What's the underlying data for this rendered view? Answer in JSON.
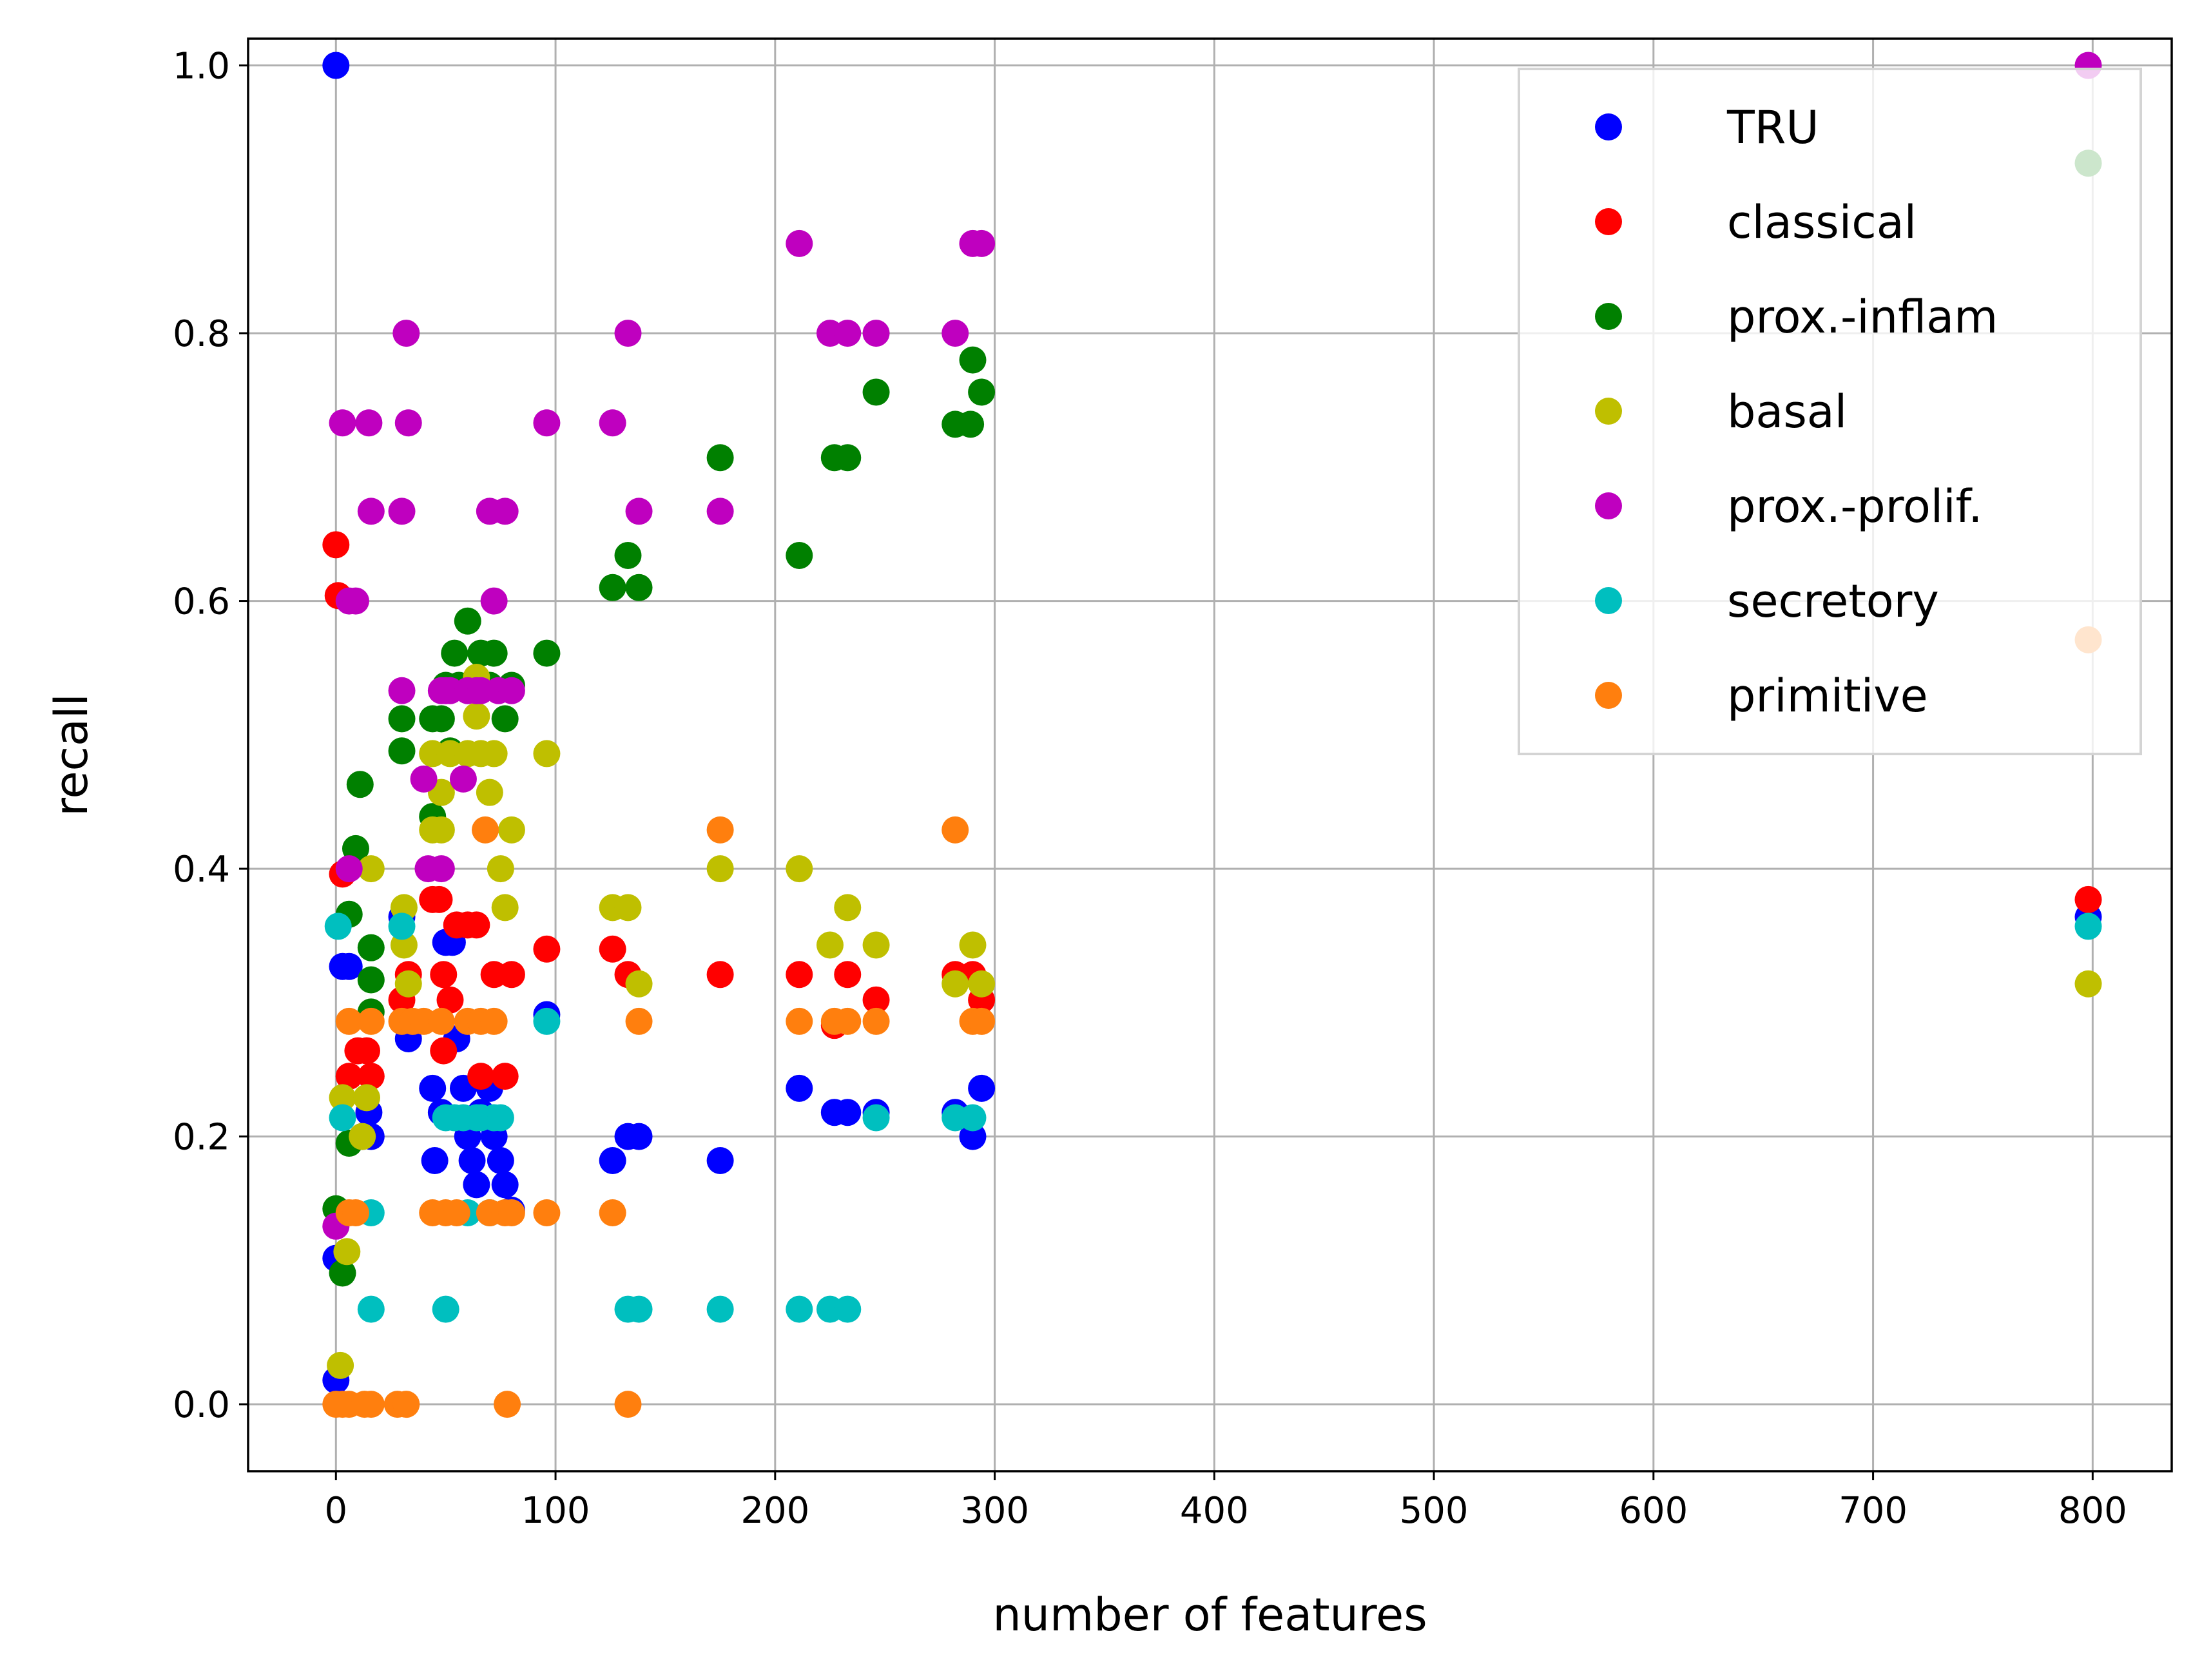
{
  "chart_data": {
    "type": "scatter",
    "title": "",
    "xlabel": "number of features",
    "ylabel": "recall",
    "xlim": [
      -40,
      836
    ],
    "ylim": [
      -0.05,
      1.02
    ],
    "xticks": [
      0,
      100,
      200,
      300,
      400,
      500,
      600,
      700,
      800
    ],
    "yticks": [
      0.0,
      0.2,
      0.4,
      0.6,
      0.8,
      1.0
    ],
    "xtick_labels": [
      "0",
      "100",
      "200",
      "300",
      "400",
      "500",
      "600",
      "700",
      "800"
    ],
    "ytick_labels": [
      "0.0",
      "0.2",
      "0.4",
      "0.6",
      "0.8",
      "1.0"
    ],
    "grid": true,
    "legend_position": "top-right",
    "series": [
      {
        "name": "TRU",
        "color": "#0000ff",
        "points": [
          [
            0,
            1.0
          ],
          [
            0,
            0.018
          ],
          [
            0,
            0.109
          ],
          [
            3,
            0.327
          ],
          [
            6,
            0.327
          ],
          [
            12,
            0.2
          ],
          [
            15,
            0.218
          ],
          [
            16,
            0.2
          ],
          [
            30,
            0.364
          ],
          [
            33,
            0.273
          ],
          [
            44,
            0.236
          ],
          [
            45,
            0.182
          ],
          [
            48,
            0.218
          ],
          [
            50,
            0.345
          ],
          [
            53,
            0.345
          ],
          [
            55,
            0.273
          ],
          [
            58,
            0.236
          ],
          [
            60,
            0.2
          ],
          [
            62,
            0.182
          ],
          [
            64,
            0.164
          ],
          [
            66,
            0.218
          ],
          [
            70,
            0.236
          ],
          [
            72,
            0.2
          ],
          [
            75,
            0.182
          ],
          [
            77,
            0.164
          ],
          [
            80,
            0.145
          ],
          [
            96,
            0.291
          ],
          [
            126,
            0.182
          ],
          [
            133,
            0.2
          ],
          [
            138,
            0.2
          ],
          [
            175,
            0.182
          ],
          [
            211,
            0.236
          ],
          [
            227,
            0.218
          ],
          [
            233,
            0.218
          ],
          [
            246,
            0.218
          ],
          [
            282,
            0.218
          ],
          [
            290,
            0.2
          ],
          [
            294,
            0.236
          ],
          [
            798,
            0.364
          ]
        ]
      },
      {
        "name": "classical",
        "color": "#ff0000",
        "points": [
          [
            0,
            0.642
          ],
          [
            1,
            0.604
          ],
          [
            3,
            0.396
          ],
          [
            6,
            0.245
          ],
          [
            10,
            0.264
          ],
          [
            14,
            0.264
          ],
          [
            16,
            0.245
          ],
          [
            30,
            0.302
          ],
          [
            33,
            0.321
          ],
          [
            44,
            0.377
          ],
          [
            47,
            0.377
          ],
          [
            49,
            0.321
          ],
          [
            49,
            0.264
          ],
          [
            52,
            0.302
          ],
          [
            55,
            0.358
          ],
          [
            60,
            0.358
          ],
          [
            64,
            0.358
          ],
          [
            66,
            0.245
          ],
          [
            72,
            0.321
          ],
          [
            77,
            0.245
          ],
          [
            80,
            0.321
          ],
          [
            96,
            0.34
          ],
          [
            126,
            0.34
          ],
          [
            133,
            0.321
          ],
          [
            175,
            0.321
          ],
          [
            211,
            0.321
          ],
          [
            227,
            0.283
          ],
          [
            233,
            0.321
          ],
          [
            246,
            0.302
          ],
          [
            282,
            0.321
          ],
          [
            290,
            0.321
          ],
          [
            294,
            0.302
          ],
          [
            798,
            0.377
          ]
        ]
      },
      {
        "name": "prox.-inflam",
        "color": "#008000",
        "points": [
          [
            0,
            0.146
          ],
          [
            3,
            0.098
          ],
          [
            6,
            0.195
          ],
          [
            6,
            0.366
          ],
          [
            9,
            0.415
          ],
          [
            11,
            0.463
          ],
          [
            16,
            0.341
          ],
          [
            16,
            0.317
          ],
          [
            16,
            0.293
          ],
          [
            30,
            0.488
          ],
          [
            30,
            0.512
          ],
          [
            44,
            0.439
          ],
          [
            44,
            0.512
          ],
          [
            48,
            0.512
          ],
          [
            50,
            0.537
          ],
          [
            52,
            0.488
          ],
          [
            54,
            0.561
          ],
          [
            56,
            0.537
          ],
          [
            60,
            0.585
          ],
          [
            64,
            0.537
          ],
          [
            66,
            0.561
          ],
          [
            70,
            0.537
          ],
          [
            72,
            0.561
          ],
          [
            77,
            0.512
          ],
          [
            80,
            0.537
          ],
          [
            96,
            0.561
          ],
          [
            126,
            0.61
          ],
          [
            133,
            0.634
          ],
          [
            138,
            0.61
          ],
          [
            175,
            0.707
          ],
          [
            211,
            0.634
          ],
          [
            227,
            0.707
          ],
          [
            233,
            0.707
          ],
          [
            246,
            0.756
          ],
          [
            282,
            0.732
          ],
          [
            289,
            0.732
          ],
          [
            290,
            0.78
          ],
          [
            294,
            0.756
          ],
          [
            798,
            0.927
          ]
        ]
      },
      {
        "name": "basal",
        "color": "#bfbf00",
        "points": [
          [
            2,
            0.029
          ],
          [
            3,
            0.229
          ],
          [
            5,
            0.114
          ],
          [
            12,
            0.2
          ],
          [
            14,
            0.229
          ],
          [
            16,
            0.4
          ],
          [
            31,
            0.371
          ],
          [
            31,
            0.343
          ],
          [
            33,
            0.314
          ],
          [
            44,
            0.486
          ],
          [
            44,
            0.429
          ],
          [
            48,
            0.457
          ],
          [
            48,
            0.429
          ],
          [
            52,
            0.486
          ],
          [
            60,
            0.486
          ],
          [
            64,
            0.543
          ],
          [
            64,
            0.514
          ],
          [
            66,
            0.486
          ],
          [
            70,
            0.457
          ],
          [
            72,
            0.486
          ],
          [
            75,
            0.4
          ],
          [
            77,
            0.371
          ],
          [
            80,
            0.429
          ],
          [
            96,
            0.486
          ],
          [
            126,
            0.371
          ],
          [
            133,
            0.371
          ],
          [
            138,
            0.314
          ],
          [
            175,
            0.4
          ],
          [
            211,
            0.4
          ],
          [
            225,
            0.343
          ],
          [
            233,
            0.371
          ],
          [
            246,
            0.343
          ],
          [
            282,
            0.314
          ],
          [
            290,
            0.343
          ],
          [
            294,
            0.314
          ],
          [
            798,
            0.314
          ]
        ]
      },
      {
        "name": "prox.-prolif.",
        "color": "#bf00bf",
        "points": [
          [
            0,
            0.133
          ],
          [
            3,
            0.733
          ],
          [
            6,
            0.6
          ],
          [
            6,
            0.4
          ],
          [
            9,
            0.6
          ],
          [
            15,
            0.733
          ],
          [
            16,
            0.667
          ],
          [
            30,
            0.533
          ],
          [
            30,
            0.667
          ],
          [
            32,
            0.8
          ],
          [
            33,
            0.733
          ],
          [
            40,
            0.467
          ],
          [
            42,
            0.4
          ],
          [
            48,
            0.4
          ],
          [
            48,
            0.533
          ],
          [
            50,
            0.533
          ],
          [
            52,
            0.533
          ],
          [
            58,
            0.467
          ],
          [
            60,
            0.533
          ],
          [
            64,
            0.533
          ],
          [
            66,
            0.533
          ],
          [
            70,
            0.667
          ],
          [
            72,
            0.6
          ],
          [
            74,
            0.533
          ],
          [
            77,
            0.667
          ],
          [
            80,
            0.533
          ],
          [
            96,
            0.733
          ],
          [
            126,
            0.733
          ],
          [
            133,
            0.8
          ],
          [
            138,
            0.667
          ],
          [
            175,
            0.667
          ],
          [
            211,
            0.867
          ],
          [
            225,
            0.8
          ],
          [
            233,
            0.8
          ],
          [
            246,
            0.8
          ],
          [
            282,
            0.8
          ],
          [
            290,
            0.867
          ],
          [
            294,
            0.867
          ],
          [
            798,
            1.0
          ]
        ]
      },
      {
        "name": "secretory",
        "color": "#00bfbf",
        "points": [
          [
            1,
            0.357
          ],
          [
            3,
            0.214
          ],
          [
            16,
            0.071
          ],
          [
            16,
            0.143
          ],
          [
            30,
            0.357
          ],
          [
            50,
            0.214
          ],
          [
            50,
            0.071
          ],
          [
            54,
            0.214
          ],
          [
            58,
            0.214
          ],
          [
            60,
            0.143
          ],
          [
            64,
            0.214
          ],
          [
            66,
            0.214
          ],
          [
            70,
            0.143
          ],
          [
            72,
            0.214
          ],
          [
            75,
            0.214
          ],
          [
            96,
            0.286
          ],
          [
            133,
            0.071
          ],
          [
            138,
            0.071
          ],
          [
            175,
            0.071
          ],
          [
            211,
            0.071
          ],
          [
            225,
            0.071
          ],
          [
            233,
            0.071
          ],
          [
            246,
            0.214
          ],
          [
            282,
            0.214
          ],
          [
            290,
            0.214
          ],
          [
            798,
            0.357
          ]
        ]
      },
      {
        "name": "primitive",
        "color": "#ff7f0e",
        "points": [
          [
            0,
            0.0
          ],
          [
            3,
            0.0
          ],
          [
            6,
            0.0
          ],
          [
            6,
            0.286
          ],
          [
            6,
            0.143
          ],
          [
            9,
            0.143
          ],
          [
            13,
            0.0
          ],
          [
            16,
            0.0
          ],
          [
            16,
            0.286
          ],
          [
            28,
            0.0
          ],
          [
            30,
            0.286
          ],
          [
            32,
            0.0
          ],
          [
            35,
            0.286
          ],
          [
            40,
            0.286
          ],
          [
            44,
            0.143
          ],
          [
            48,
            0.286
          ],
          [
            50,
            0.143
          ],
          [
            55,
            0.143
          ],
          [
            60,
            0.286
          ],
          [
            66,
            0.286
          ],
          [
            68,
            0.429
          ],
          [
            70,
            0.143
          ],
          [
            72,
            0.286
          ],
          [
            77,
            0.143
          ],
          [
            78,
            0.0
          ],
          [
            80,
            0.143
          ],
          [
            96,
            0.143
          ],
          [
            126,
            0.143
          ],
          [
            133,
            0.0
          ],
          [
            138,
            0.286
          ],
          [
            175,
            0.429
          ],
          [
            211,
            0.286
          ],
          [
            227,
            0.286
          ],
          [
            233,
            0.286
          ],
          [
            246,
            0.286
          ],
          [
            282,
            0.429
          ],
          [
            290,
            0.286
          ],
          [
            294,
            0.286
          ],
          [
            798,
            0.571
          ]
        ]
      }
    ]
  }
}
